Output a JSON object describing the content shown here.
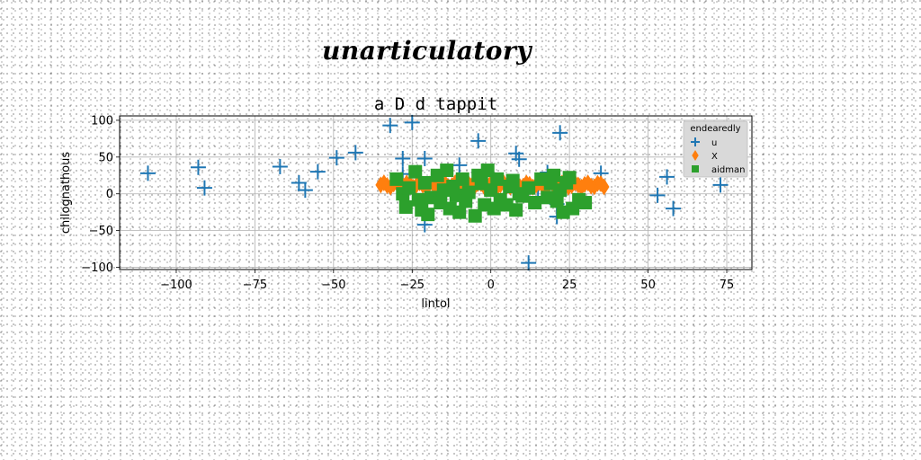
{
  "banner": "unarticulatory",
  "chart_data": {
    "type": "scatter",
    "title": "a D d tappit",
    "xlabel": "lintol",
    "ylabel": "chilognathous",
    "xlim": [
      -118,
      83
    ],
    "ylim": [
      -103,
      106
    ],
    "xticks": [
      -100,
      -75,
      -50,
      -25,
      0,
      25,
      50,
      75
    ],
    "yticks": [
      -100,
      -50,
      0,
      50,
      100
    ],
    "xtick_labels": [
      "−100",
      "−75",
      "−50",
      "−25",
      "0",
      "25",
      "50",
      "75"
    ],
    "ytick_labels": [
      "−100",
      "−50",
      "0",
      "50",
      "100"
    ],
    "grid": true,
    "legend_title": "endearedly",
    "legend_position": "top-right",
    "series": [
      {
        "name": "u",
        "marker": "plus",
        "color": "#1f77b4",
        "points": [
          [
            -109,
            28
          ],
          [
            -93,
            36
          ],
          [
            -91,
            8
          ],
          [
            -67,
            37
          ],
          [
            -61,
            15
          ],
          [
            -59,
            5
          ],
          [
            -55,
            30
          ],
          [
            -49,
            49
          ],
          [
            -43,
            56
          ],
          [
            -32,
            93
          ],
          [
            -28,
            48
          ],
          [
            -28,
            27
          ],
          [
            -25,
            97
          ],
          [
            -21,
            48
          ],
          [
            -21,
            -42
          ],
          [
            -10,
            39
          ],
          [
            -4,
            72
          ],
          [
            8,
            55
          ],
          [
            9,
            47
          ],
          [
            12,
            -94
          ],
          [
            15,
            -4
          ],
          [
            18,
            29
          ],
          [
            21,
            -14
          ],
          [
            22,
            83
          ],
          [
            21,
            -31
          ],
          [
            35,
            28
          ],
          [
            53,
            -2
          ],
          [
            56,
            23
          ],
          [
            58,
            -20
          ],
          [
            73,
            12
          ]
        ]
      },
      {
        "name": "X",
        "marker": "thin_diamond",
        "color": "#ff7f0e",
        "x_start": -35,
        "x_end": 36,
        "count": 70,
        "y_center": 12
      },
      {
        "name": "aidman",
        "marker": "square",
        "color": "#2ca02c",
        "points": [
          [
            -30,
            20
          ],
          [
            -28,
            0
          ],
          [
            -27,
            -18
          ],
          [
            -26,
            8
          ],
          [
            -24,
            30
          ],
          [
            -23,
            -8
          ],
          [
            -22,
            -22
          ],
          [
            -21,
            15
          ],
          [
            -20,
            -28
          ],
          [
            -19,
            -5
          ],
          [
            -17,
            25
          ],
          [
            -16,
            -12
          ],
          [
            -15,
            5
          ],
          [
            -14,
            32
          ],
          [
            -13,
            -20
          ],
          [
            -12,
            10
          ],
          [
            -11,
            -2
          ],
          [
            -10,
            -25
          ],
          [
            -9,
            20
          ],
          [
            -8,
            -10
          ],
          [
            -7,
            2
          ],
          [
            -5,
            -30
          ],
          [
            -4,
            25
          ],
          [
            -3,
            14
          ],
          [
            -2,
            -15
          ],
          [
            -1,
            32
          ],
          [
            0,
            5
          ],
          [
            1,
            -20
          ],
          [
            2,
            20
          ],
          [
            3,
            -8
          ],
          [
            5,
            -15
          ],
          [
            6,
            10
          ],
          [
            7,
            18
          ],
          [
            8,
            -22
          ],
          [
            9,
            0
          ],
          [
            10,
            -3
          ],
          [
            12,
            8
          ],
          [
            14,
            -12
          ],
          [
            16,
            20
          ],
          [
            18,
            -5
          ],
          [
            19,
            14
          ],
          [
            20,
            25
          ],
          [
            21,
            -10
          ],
          [
            22,
            5
          ],
          [
            23,
            -25
          ],
          [
            24,
            15
          ],
          [
            25,
            22
          ],
          [
            26,
            -20
          ],
          [
            28,
            -8
          ],
          [
            30,
            -12
          ]
        ]
      }
    ]
  }
}
